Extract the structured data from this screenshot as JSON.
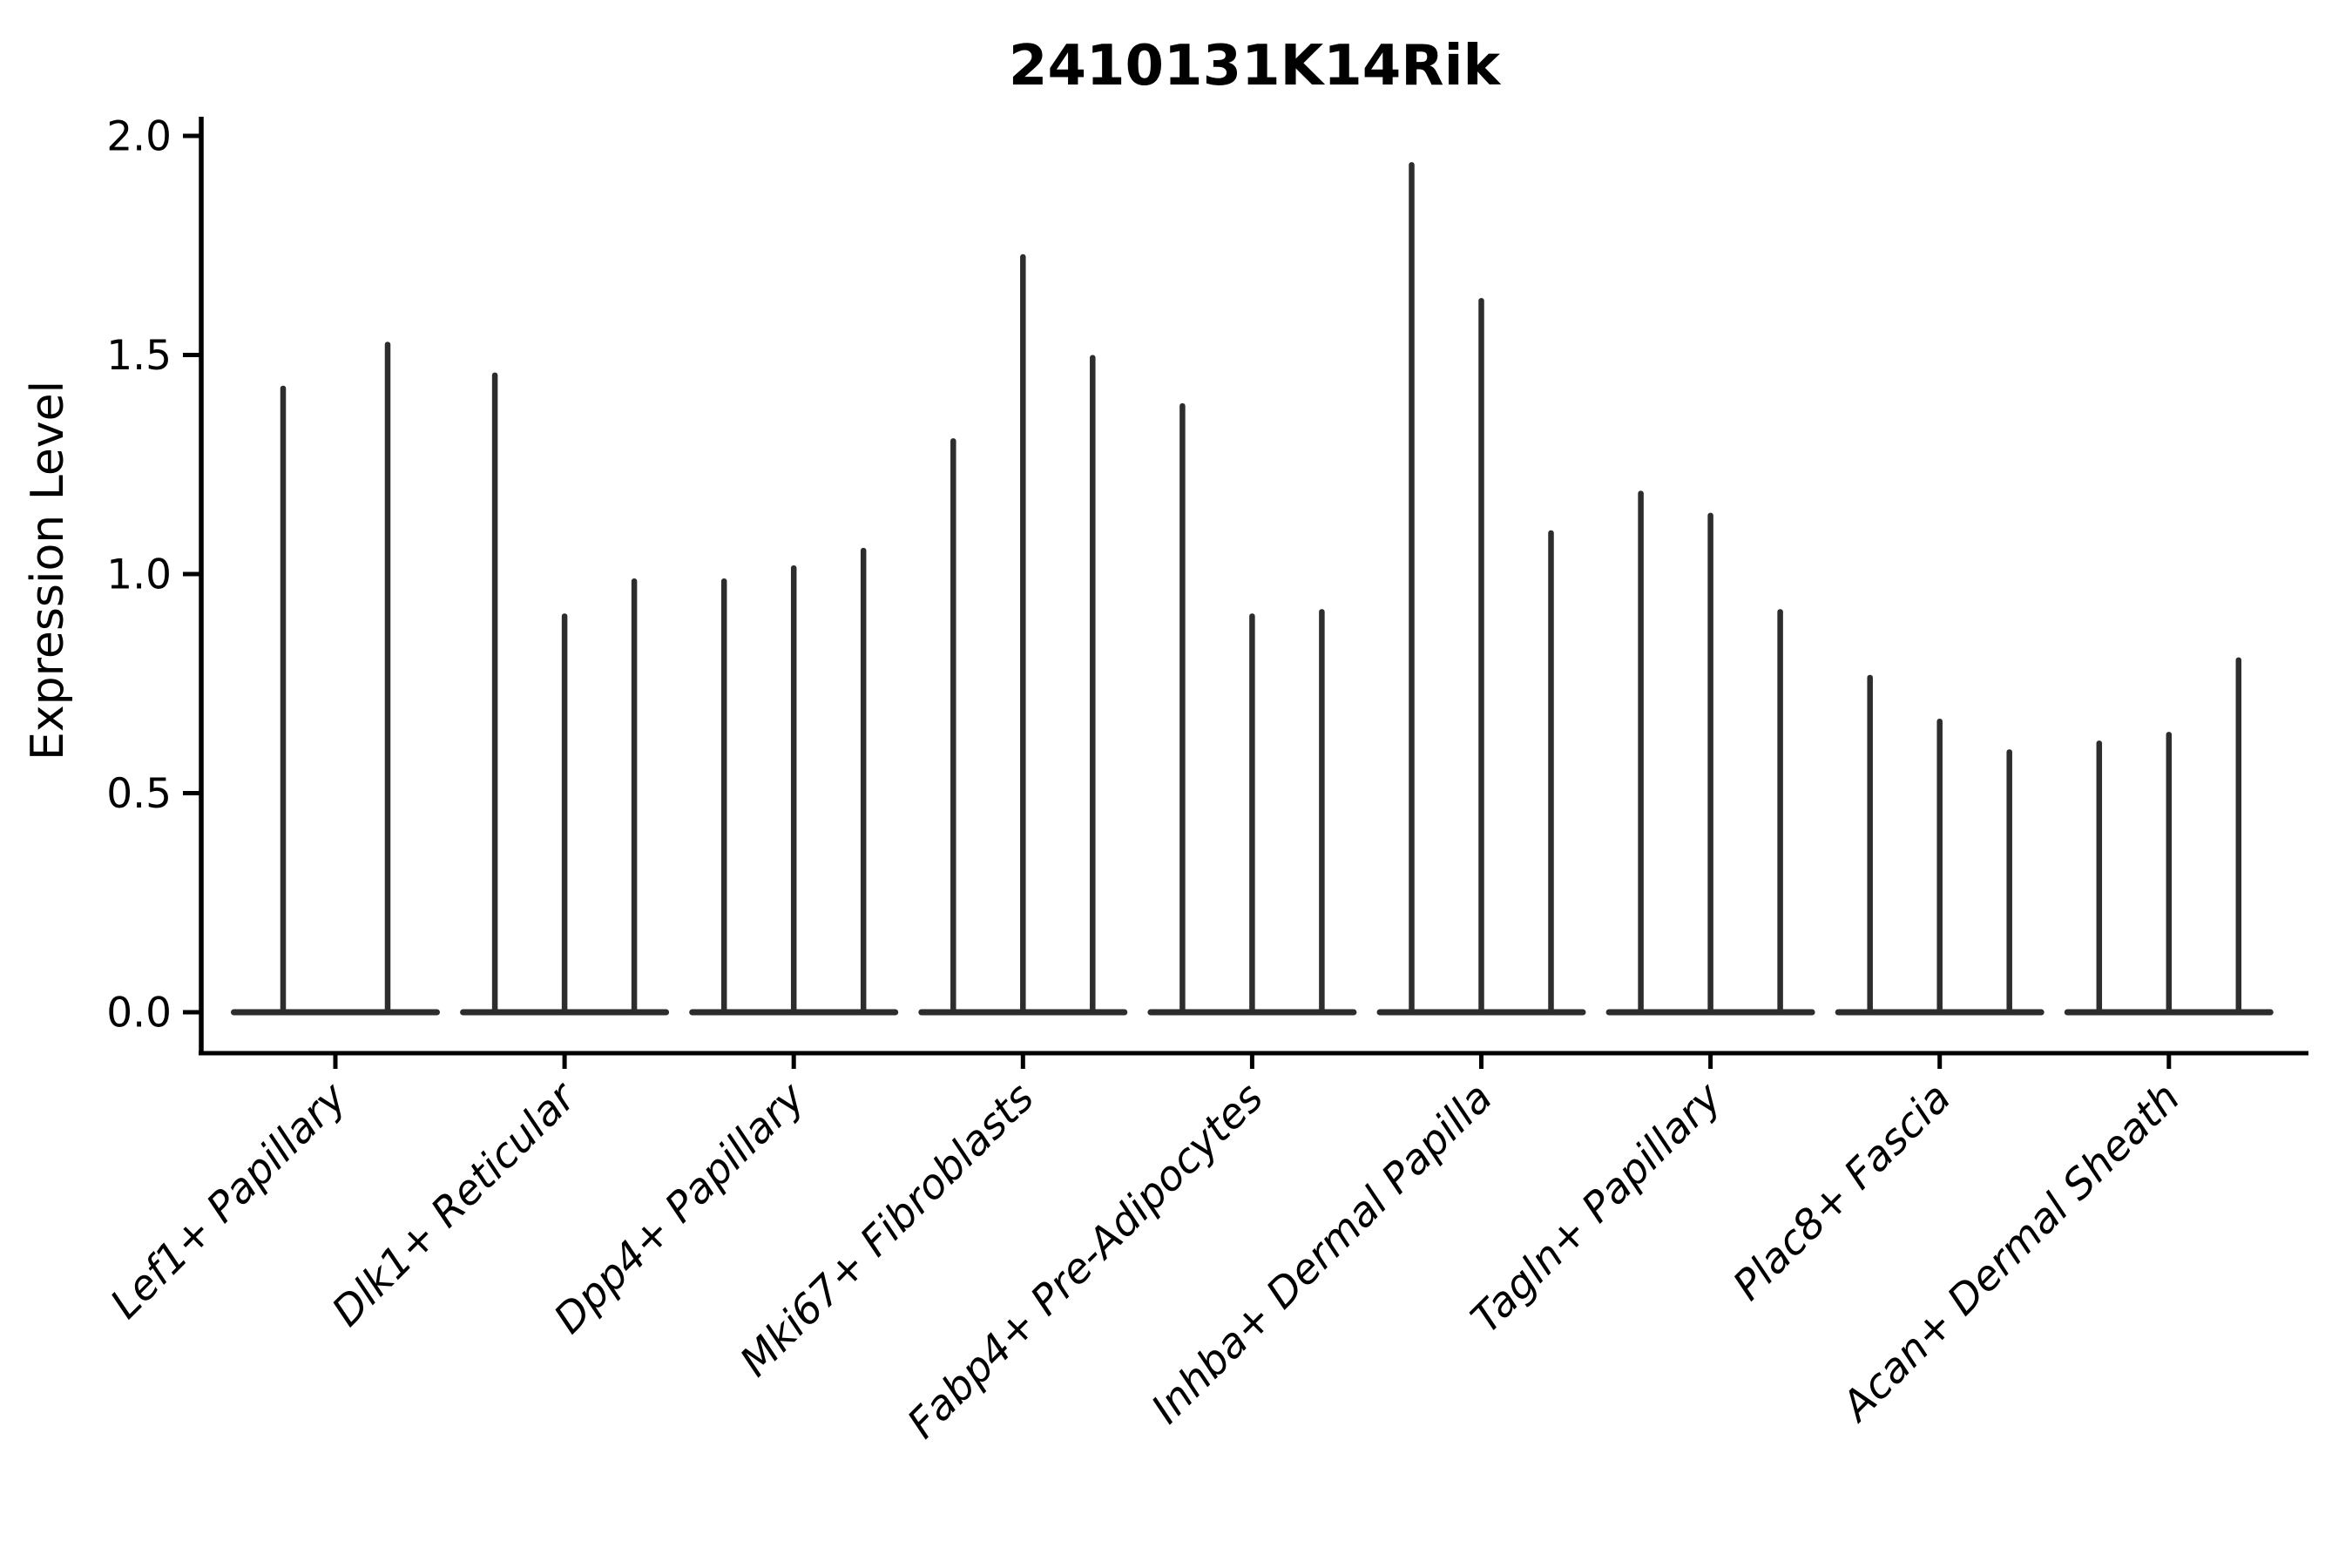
{
  "chart_data": {
    "type": "violin",
    "title": "2410131K14Rik",
    "ylabel": "Expression Level",
    "xlabel": "",
    "ylim": [
      0,
      2.05
    ],
    "yticks": [
      "0.0",
      "0.5",
      "1.0",
      "1.5",
      "2.0"
    ],
    "ytick_values": [
      0,
      0.5,
      1.0,
      1.5,
      2.0
    ],
    "categories": [
      "Lef1+ Papillary",
      "Dlk1+ Reticular",
      "Dpp4+ Papillary",
      "Mki67+ Fibroblasts",
      "Fabp4+ Pre-Adipocytes",
      "Inhba+ Dermal Papilla",
      "Tagln+ Papillary",
      "Plac8+ Fascia",
      "Acan+ Dermal Sheath"
    ],
    "series_note": "each category shows thin violins collapsed to a flat base at 0 with a narrow spike; values are spike maxima (expression level)",
    "violins": [
      [
        1.43,
        1.53
      ],
      [
        1.46,
        0.91,
        0.99
      ],
      [
        0.99,
        1.02,
        1.06
      ],
      [
        1.31,
        1.73,
        1.5
      ],
      [
        1.39,
        0.91,
        0.92
      ],
      [
        1.94,
        1.63,
        1.1
      ],
      [
        1.19,
        1.14,
        0.92
      ],
      [
        0.77,
        0.67,
        0.6
      ],
      [
        0.62,
        0.64,
        0.81
      ]
    ],
    "violin_color": "#2d2d2d",
    "axis_color": "#000000",
    "grid": false,
    "legend_position": "none"
  }
}
